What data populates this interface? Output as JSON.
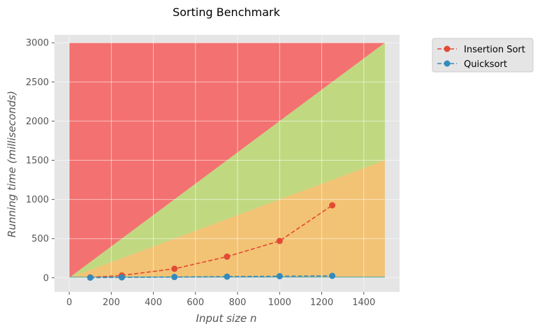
{
  "chart_data": {
    "type": "line",
    "title": "Sorting Benchmark",
    "xlabel": "Input size n",
    "ylabel": "Running time (milliseconds)",
    "xlim": [
      -70,
      1570
    ],
    "ylim": [
      -180,
      3100
    ],
    "xticks": [
      0,
      200,
      400,
      600,
      800,
      1000,
      1200,
      1400
    ],
    "yticks": [
      0,
      500,
      1000,
      1500,
      2000,
      2500,
      3000
    ],
    "grid": true,
    "legend_position": "outside-top-right",
    "bands": [
      {
        "name": "red-region",
        "color": "#f47171",
        "points": [
          [
            0,
            3000
          ],
          [
            1500,
            3000
          ],
          [
            1500,
            3000
          ],
          [
            0,
            0
          ]
        ]
      },
      {
        "name": "green-region",
        "color": "#c0d981",
        "points": [
          [
            0,
            0
          ],
          [
            1500,
            3000
          ],
          [
            1500,
            1500
          ],
          [
            0,
            0
          ]
        ]
      },
      {
        "name": "orange-region",
        "color": "#f2c374",
        "points": [
          [
            0,
            0
          ],
          [
            1500,
            1500
          ],
          [
            1500,
            15
          ],
          [
            0,
            15
          ]
        ]
      },
      {
        "name": "teal-region",
        "color": "#6aa79a",
        "points": [
          [
            0,
            15
          ],
          [
            1500,
            15
          ],
          [
            1500,
            0
          ],
          [
            0,
            0
          ]
        ]
      }
    ],
    "x": [
      100,
      250,
      500,
      750,
      1000,
      1250
    ],
    "series": [
      {
        "name": "Insertion Sort",
        "color": "#e24a33",
        "values": [
          5,
          30,
          115,
          270,
          470,
          925
        ]
      },
      {
        "name": "Quicksort",
        "color": "#348abd",
        "values": [
          2,
          5,
          10,
          15,
          20,
          25
        ]
      }
    ]
  }
}
